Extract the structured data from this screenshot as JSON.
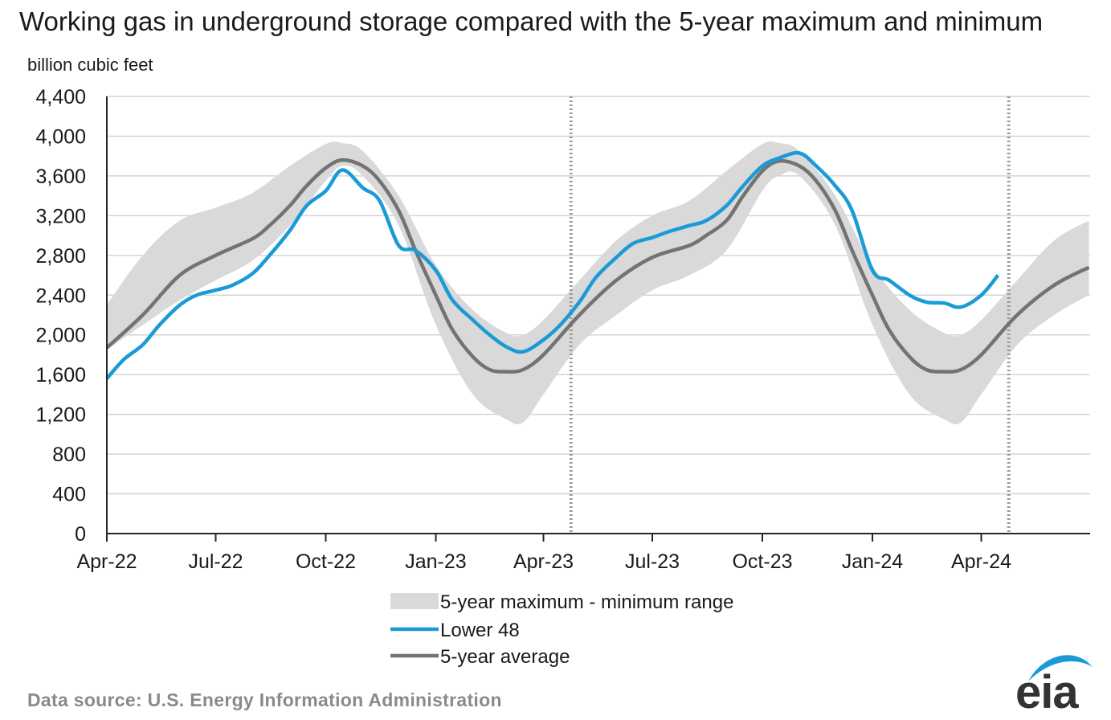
{
  "source": "Data source:  U.S. Energy Information Administration",
  "logo": {
    "text": "eia",
    "name": "eia-logo"
  },
  "colors": {
    "lower48": "#1a9bd7",
    "average": "#737373",
    "range": "#d9d9d9",
    "grid": "#d4d4d4",
    "axis": "#262626"
  },
  "chart_data": {
    "type": "line",
    "title": "Working gas in underground  storage compared with the 5-year maximum  and minimum",
    "ylabel": "billion cubic feet",
    "xlabel": "",
    "ylim": [
      0,
      4400
    ],
    "yticks": [
      0,
      400,
      800,
      1200,
      1600,
      2000,
      2400,
      2800,
      3200,
      3600,
      4000,
      4400
    ],
    "ytick_labels": [
      "0",
      "400",
      "800",
      "1,200",
      "1,600",
      "2,000",
      "2,400",
      "2,800",
      "3,200",
      "3,600",
      "4,000",
      "4,400"
    ],
    "xlim": [
      "2022-04-01",
      "2024-07-01"
    ],
    "xticks": [
      "2022-04-01",
      "2022-07-01",
      "2022-10-01",
      "2023-01-01",
      "2023-04-01",
      "2023-07-01",
      "2023-10-01",
      "2024-01-01",
      "2024-04-01"
    ],
    "xtick_labels": [
      "Apr-22",
      "Jul-22",
      "Oct-22",
      "Jan-23",
      "Apr-23",
      "Jul-23",
      "Oct-23",
      "Jan-24",
      "Apr-24"
    ],
    "grid": true,
    "legend_position": "bottom-center",
    "vertical_markers": [
      "2023-04-24",
      "2024-04-24"
    ],
    "series": [
      {
        "name": "5-year maximum - minimum range",
        "type": "area",
        "x": [
          "2022-04-01",
          "2022-05-01",
          "2022-06-01",
          "2022-07-01",
          "2022-08-01",
          "2022-09-01",
          "2022-10-01",
          "2022-10-15",
          "2022-11-01",
          "2022-12-01",
          "2023-01-01",
          "2023-02-01",
          "2023-03-01",
          "2023-03-15",
          "2023-04-01",
          "2023-05-01",
          "2023-06-01",
          "2023-07-01",
          "2023-08-01",
          "2023-09-01",
          "2023-10-01",
          "2023-10-15",
          "2023-11-01",
          "2023-12-01",
          "2024-01-01",
          "2024-02-01",
          "2024-03-01",
          "2024-03-15",
          "2024-04-01",
          "2024-05-01",
          "2024-06-01",
          "2024-06-30"
        ],
        "max": [
          2300,
          2800,
          3150,
          3280,
          3430,
          3700,
          3920,
          3930,
          3850,
          3400,
          2700,
          2250,
          2020,
          2000,
          2150,
          2550,
          2950,
          3200,
          3350,
          3650,
          3920,
          3930,
          3850,
          3400,
          2700,
          2250,
          2020,
          2000,
          2150,
          2550,
          2950,
          3150
        ],
        "min": [
          1850,
          2100,
          2350,
          2550,
          2750,
          3100,
          3550,
          3700,
          3600,
          3100,
          2100,
          1400,
          1150,
          1120,
          1400,
          1900,
          2200,
          2450,
          2600,
          2850,
          3450,
          3600,
          3600,
          3100,
          2100,
          1400,
          1150,
          1120,
          1400,
          1900,
          2200,
          2400
        ]
      },
      {
        "name": "Lower 48",
        "type": "line",
        "x": [
          "2022-04-01",
          "2022-04-15",
          "2022-05-01",
          "2022-05-15",
          "2022-06-01",
          "2022-06-15",
          "2022-07-01",
          "2022-07-15",
          "2022-08-01",
          "2022-08-15",
          "2022-09-01",
          "2022-09-15",
          "2022-10-01",
          "2022-10-15",
          "2022-11-01",
          "2022-11-15",
          "2022-12-01",
          "2022-12-15",
          "2023-01-01",
          "2023-01-15",
          "2023-02-01",
          "2023-02-15",
          "2023-03-01",
          "2023-03-15",
          "2023-04-01",
          "2023-04-15",
          "2023-05-01",
          "2023-05-15",
          "2023-06-01",
          "2023-06-15",
          "2023-07-01",
          "2023-07-15",
          "2023-08-01",
          "2023-08-15",
          "2023-09-01",
          "2023-09-15",
          "2023-10-01",
          "2023-10-15",
          "2023-11-01",
          "2023-11-15",
          "2023-12-01",
          "2023-12-15",
          "2024-01-01",
          "2024-01-15",
          "2024-02-01",
          "2024-02-15",
          "2024-03-01",
          "2024-03-15",
          "2024-04-01",
          "2024-04-15"
        ],
        "values": [
          1560,
          1750,
          1900,
          2100,
          2300,
          2400,
          2450,
          2500,
          2620,
          2800,
          3050,
          3300,
          3450,
          3660,
          3480,
          3350,
          2900,
          2850,
          2650,
          2350,
          2150,
          2000,
          1880,
          1830,
          1950,
          2100,
          2330,
          2580,
          2780,
          2920,
          2980,
          3040,
          3100,
          3150,
          3300,
          3500,
          3700,
          3780,
          3830,
          3700,
          3500,
          3250,
          2650,
          2550,
          2400,
          2330,
          2320,
          2280,
          2400,
          2600
        ]
      },
      {
        "name": "5-year average",
        "type": "line",
        "x": [
          "2022-04-01",
          "2022-05-01",
          "2022-06-01",
          "2022-07-01",
          "2022-08-01",
          "2022-08-15",
          "2022-09-01",
          "2022-09-15",
          "2022-10-01",
          "2022-10-15",
          "2022-11-01",
          "2022-11-15",
          "2022-12-01",
          "2022-12-15",
          "2023-01-01",
          "2023-01-15",
          "2023-02-01",
          "2023-02-15",
          "2023-03-01",
          "2023-03-15",
          "2023-04-01",
          "2023-05-01",
          "2023-06-01",
          "2023-07-01",
          "2023-08-01",
          "2023-08-15",
          "2023-09-01",
          "2023-09-15",
          "2023-10-01",
          "2023-10-15",
          "2023-11-01",
          "2023-11-15",
          "2023-12-01",
          "2023-12-15",
          "2024-01-01",
          "2024-01-15",
          "2024-02-01",
          "2024-02-15",
          "2024-03-01",
          "2024-03-15",
          "2024-04-01",
          "2024-05-01",
          "2024-06-01",
          "2024-06-30"
        ],
        "values": [
          1870,
          2200,
          2600,
          2800,
          2970,
          3100,
          3300,
          3500,
          3680,
          3760,
          3700,
          3550,
          3250,
          2850,
          2400,
          2050,
          1780,
          1650,
          1630,
          1650,
          1800,
          2200,
          2550,
          2780,
          2900,
          3000,
          3150,
          3400,
          3650,
          3750,
          3700,
          3550,
          3250,
          2850,
          2400,
          2050,
          1780,
          1650,
          1630,
          1650,
          1800,
          2200,
          2500,
          2680
        ]
      }
    ]
  }
}
